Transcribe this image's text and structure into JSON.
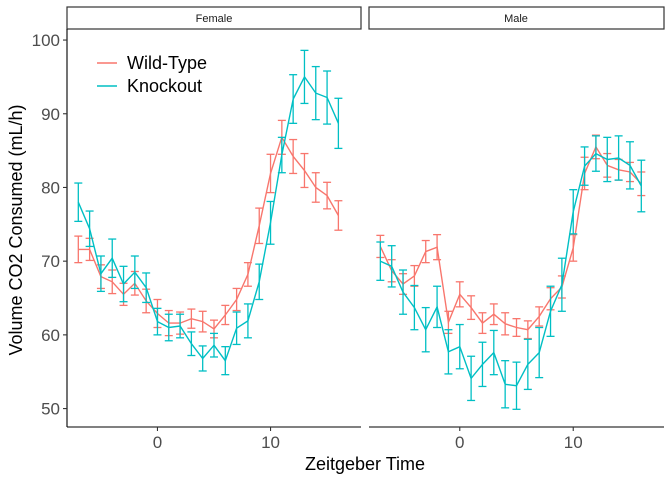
{
  "chart_data": {
    "type": "line",
    "xlabel": "Zeitgeber Time",
    "ylabel": "Volume CO2 Consumed (mL/h)",
    "x_ticks": [
      0,
      10
    ],
    "y_ticks": [
      50,
      60,
      70,
      80,
      90,
      100
    ],
    "xlim": [
      -8,
      18
    ],
    "ylim": [
      47.5,
      101.5
    ],
    "legend_position": "top-left inside first panel",
    "grid": false,
    "x": [
      -7,
      -6,
      -5,
      -4,
      -3,
      -2,
      -1,
      0,
      1,
      2,
      3,
      4,
      5,
      6,
      7,
      8,
      9,
      10,
      11,
      12,
      13,
      14,
      15,
      16
    ],
    "series_meta": [
      {
        "name": "Wild-Type",
        "color": "#F8766D"
      },
      {
        "name": "Knockout",
        "color": "#00BFC4"
      }
    ],
    "panels": [
      {
        "label": "Female",
        "series": [
          {
            "name": "Wild-Type",
            "values": [
              71.6,
              71.6,
              67.9,
              67.2,
              65.5,
              67.0,
              64.6,
              62.9,
              61.6,
              61.6,
              62.2,
              61.8,
              60.8,
              62.7,
              64.8,
              68.2,
              74.8,
              81.9,
              86.8,
              84.2,
              82.3,
              80.0,
              78.9,
              76.2
            ],
            "errors": [
              1.8,
              1.5,
              1.6,
              1.6,
              1.5,
              1.6,
              1.6,
              1.9,
              1.7,
              1.5,
              1.3,
              1.4,
              1.2,
              1.3,
              1.5,
              1.6,
              2.4,
              2.6,
              2.3,
              2.3,
              2.3,
              2.0,
              1.8,
              2.0
            ]
          },
          {
            "name": "Knockout",
            "values": [
              78.0,
              74.4,
              68.3,
              70.4,
              66.9,
              68.5,
              66.4,
              61.8,
              61.0,
              61.2,
              58.8,
              56.8,
              58.6,
              56.5,
              60.9,
              61.9,
              67.2,
              75.2,
              84.4,
              92.0,
              95.0,
              92.8,
              92.2,
              88.7
            ],
            "errors": [
              2.6,
              2.4,
              2.4,
              2.6,
              2.4,
              2.2,
              2.0,
              1.8,
              1.8,
              1.6,
              1.6,
              1.7,
              1.6,
              1.9,
              2.2,
              2.3,
              2.4,
              2.9,
              2.4,
              3.3,
              3.6,
              3.6,
              3.6,
              3.4
            ]
          }
        ]
      },
      {
        "label": "Male",
        "series": [
          {
            "name": "Wild-Type",
            "values": [
              72.0,
              68.7,
              66.9,
              68.0,
              71.3,
              71.9,
              61.7,
              65.5,
              63.7,
              61.6,
              62.8,
              61.5,
              61.0,
              60.7,
              62.5,
              64.9,
              66.5,
              71.8,
              81.9,
              85.5,
              83.0,
              82.4,
              82.1,
              80.5
            ],
            "errors": [
              1.5,
              1.5,
              1.4,
              1.4,
              1.5,
              1.7,
              1.5,
              1.7,
              1.6,
              1.4,
              1.4,
              1.5,
              1.2,
              1.2,
              1.3,
              1.5,
              1.5,
              1.8,
              2.2,
              1.6,
              1.6,
              1.4,
              1.3,
              1.6
            ]
          },
          {
            "name": "Knockout",
            "values": [
              70.0,
              69.3,
              65.8,
              63.7,
              60.7,
              63.8,
              57.7,
              58.4,
              54.1,
              56.0,
              57.6,
              53.3,
              53.1,
              56.0,
              57.6,
              63.2,
              66.8,
              76.7,
              82.9,
              84.6,
              83.8,
              84.0,
              83.0,
              80.2
            ],
            "errors": [
              2.6,
              2.8,
              3.0,
              3.0,
              3.0,
              2.8,
              3.0,
              3.0,
              3.0,
              3.0,
              3.0,
              3.2,
              3.2,
              3.4,
              3.4,
              3.4,
              3.6,
              3.0,
              2.6,
              2.4,
              3.0,
              3.0,
              3.2,
              3.5
            ]
          }
        ]
      }
    ]
  }
}
